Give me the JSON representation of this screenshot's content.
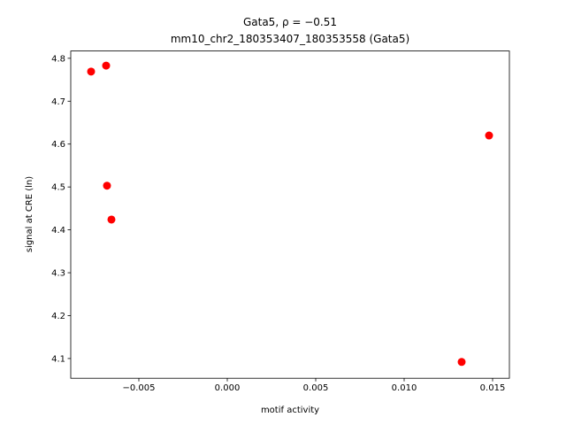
{
  "chart_data": {
    "type": "scatter",
    "title": "Gata5, ρ = −0.51",
    "subtitle": "mm10_chr2_180353407_180353558 (Gata5)",
    "x_label": "motif activity",
    "y_label": "signal at CRE (ln)",
    "series": [
      {
        "color": "#ff0000",
        "x": [
          -0.0077,
          -0.00685,
          -0.0068,
          -0.00655,
          0.0148,
          0.01325
        ],
        "values": [
          4.769,
          4.783,
          4.503,
          4.424,
          4.62,
          4.092
        ]
      }
    ],
    "xlim": [
      -0.00885,
      0.01595
    ],
    "ylim": [
      4.054,
      4.817
    ],
    "xticks": [
      {
        "value": -0.005,
        "label": "−0.005"
      },
      {
        "value": 0,
        "label": "0.000"
      },
      0.005,
      {
        "value": 0.01,
        "label": "0.010"
      },
      0.015
    ],
    "yticks": [
      4.1,
      4.2,
      4.3,
      4.4,
      4.5,
      4.6,
      4.7,
      4.8
    ],
    "grid": false
  }
}
